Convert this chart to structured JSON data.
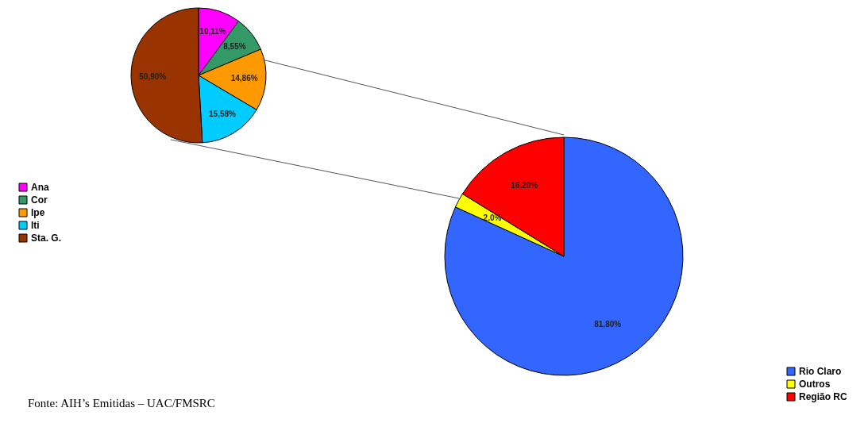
{
  "chart_data": [
    {
      "type": "pie",
      "categories": [
        "Ana",
        "Cor",
        "Ipe",
        "Iti",
        "Sta. G."
      ],
      "values": [
        10.11,
        8.55,
        14.86,
        15.58,
        50.9
      ],
      "colors": [
        "#ff00ff",
        "#339966",
        "#ff9900",
        "#00ccff",
        "#993300"
      ],
      "value_labels": [
        "10,11%",
        "8,55%",
        "14,86%",
        "15,58%",
        "50,90%"
      ],
      "legend": "bottom left"
    },
    {
      "type": "pie",
      "categories": [
        "Rio Claro",
        "Outros",
        "Região RC"
      ],
      "values": [
        81.8,
        2.0,
        16.2
      ],
      "colors": [
        "#3366ff",
        "#ffff00",
        "#ff0000"
      ],
      "value_labels": [
        "81,80%",
        "2,0%",
        "16,20%"
      ],
      "legend": "bottom right",
      "annotations": [
        "Fonte: AIH’s Emitidas – UAC/FMSRC"
      ]
    }
  ]
}
